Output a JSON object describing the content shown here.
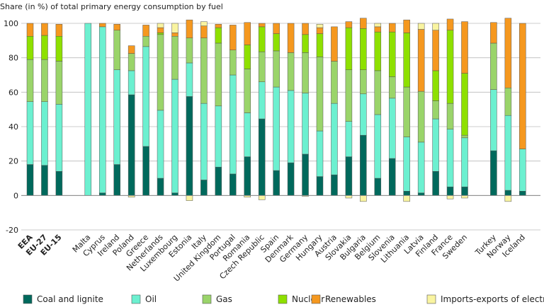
{
  "chart_data": {
    "type": "bar",
    "stacked": true,
    "ylabel": "Share (in %) of total primary energy consumption by fuel",
    "ylim": [
      -20,
      100
    ],
    "yticks": [
      -20,
      0,
      20,
      40,
      60,
      80,
      100
    ],
    "grid": true,
    "legend_position": "bottom",
    "categories": [
      "EEA",
      "EU-27",
      "EU-15",
      "",
      "Malta",
      "Cyprus",
      "Ireland",
      "Poland",
      "Greece",
      "Netherlands",
      "Luxembourg",
      "Estonia",
      "Italy",
      "United Kingdom",
      "Portugal",
      "Romania",
      "Czech Republic",
      "Spain",
      "Denmark",
      "Germany",
      "Hungary",
      "Austria",
      "Slovakia",
      "Bulgaria",
      "Belgium",
      "Slovenia",
      "Lithuania",
      "Latvia",
      "Finland",
      "France",
      "Sweden",
      "",
      "Turkey",
      "Norway",
      "Iceland"
    ],
    "bold_categories": [
      "EEA",
      "EU-27",
      "EU-15"
    ],
    "series": [
      {
        "name": "Coal and lignite",
        "color": "#00695c",
        "values": [
          18,
          17.5,
          14,
          0,
          0,
          1.5,
          18,
          58.5,
          28.5,
          10,
          1.5,
          57.5,
          9,
          16.5,
          12.5,
          22.5,
          44.5,
          14.5,
          19,
          24,
          11,
          12,
          22.5,
          35,
          10,
          21.5,
          2.5,
          1.5,
          14,
          5,
          5,
          0,
          26,
          3,
          2.5
        ]
      },
      {
        "name": "Oil",
        "color": "#6cf0d0",
        "values": [
          36.5,
          37,
          39,
          0,
          100,
          96.5,
          55,
          14,
          58,
          39.5,
          66,
          19.5,
          44.5,
          35.5,
          57.5,
          25.5,
          21.5,
          48.5,
          42,
          35.5,
          26.5,
          41.5,
          20.5,
          24,
          37,
          35,
          31.5,
          29.5,
          30.5,
          33.5,
          28.5,
          0,
          35.5,
          43.5,
          24.5
        ]
      },
      {
        "name": "Gas",
        "color": "#9ad46a",
        "values": [
          24.5,
          24.5,
          25,
          0,
          0,
          0,
          23,
          10,
          6,
          44,
          25,
          14.5,
          38,
          36.5,
          14.5,
          25.5,
          17.5,
          21,
          22,
          23.5,
          43,
          24.5,
          30,
          14,
          25.5,
          12.5,
          29,
          29.5,
          10.5,
          15,
          1.5,
          0,
          27,
          16,
          0
        ]
      },
      {
        "name": "Nuclear",
        "color": "#8ee000",
        "values": [
          13.5,
          14,
          14.5,
          0,
          0,
          0,
          0,
          0,
          0,
          1,
          0,
          0,
          0,
          9,
          0,
          14,
          14.5,
          10,
          0,
          10.5,
          13.5,
          0,
          24.5,
          24,
          22.5,
          26,
          31.5,
          0,
          17.5,
          42.5,
          36,
          0,
          0,
          0,
          0
        ]
      },
      {
        "name": "Renewables",
        "color": "#f5981f",
        "values": [
          7.5,
          7,
          7,
          0,
          0,
          2,
          3.5,
          4.5,
          6.5,
          3,
          2,
          10.5,
          7,
          2,
          14.5,
          13,
          2,
          6,
          17,
          6.5,
          3.5,
          20,
          3.5,
          6,
          3,
          5,
          7.5,
          36,
          23.5,
          6.5,
          30,
          0,
          12,
          40.5,
          73
        ]
      },
      {
        "name": "Imports-exports of electricity",
        "color": "#f9f4a0",
        "values": [
          0,
          0,
          0,
          0,
          0,
          0,
          0,
          -1,
          0,
          2.5,
          5.5,
          -3,
          2.5,
          0,
          0,
          -1,
          -2.5,
          0,
          0,
          -0.5,
          2,
          0,
          -1.5,
          -3.5,
          2,
          0,
          -3.5,
          3.5,
          4,
          -2,
          -1.5,
          0,
          0,
          -3.5,
          0
        ]
      }
    ]
  }
}
